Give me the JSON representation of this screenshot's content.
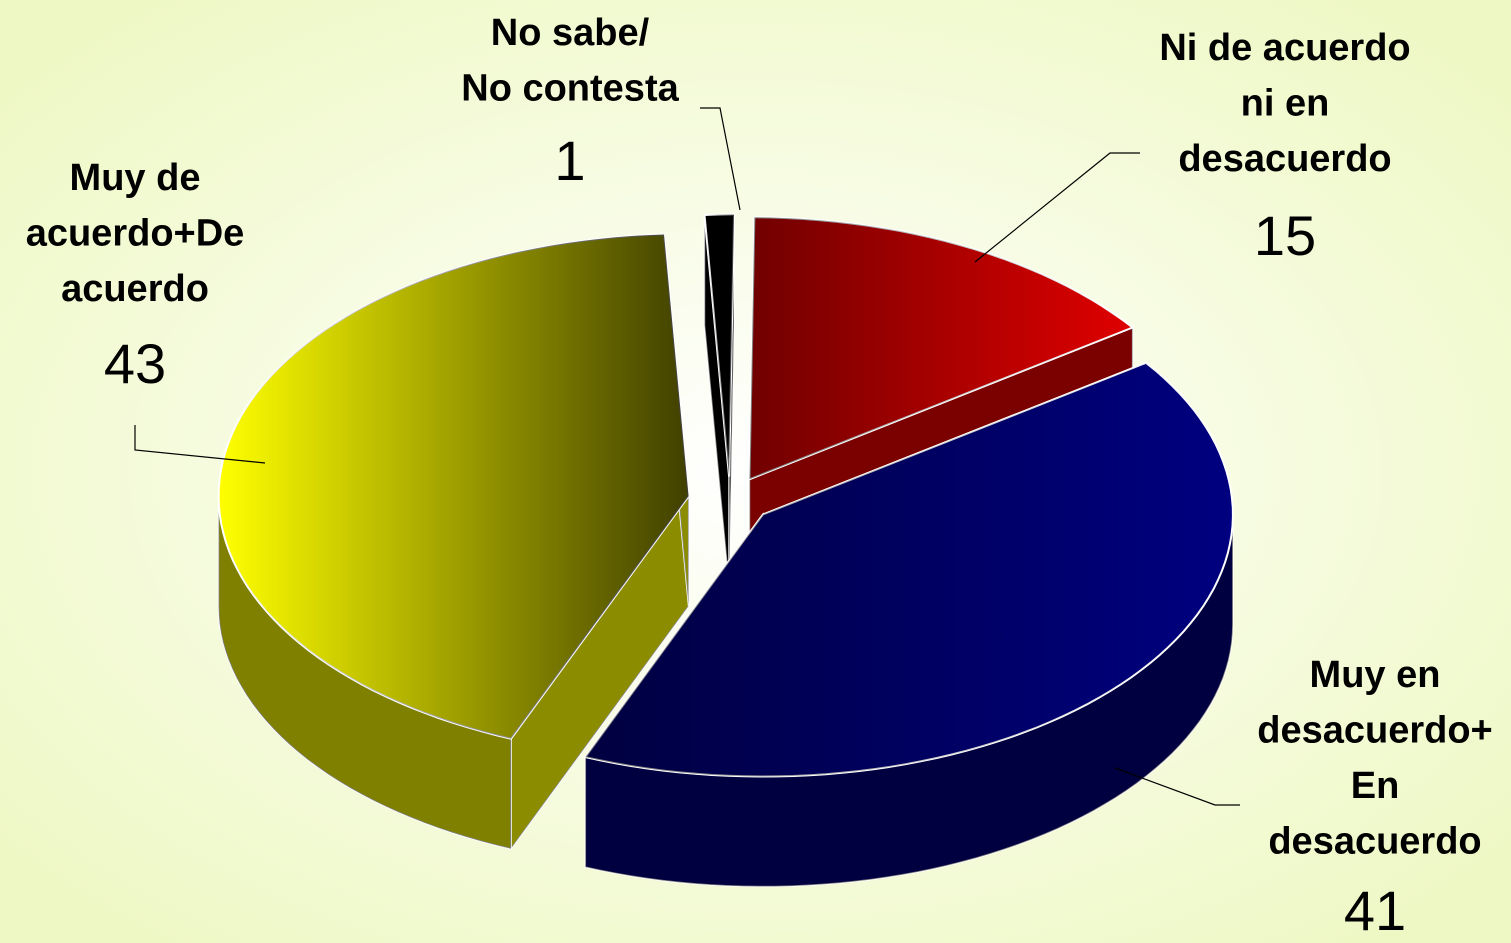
{
  "chart_data": {
    "type": "pie3d",
    "categories": [
      "No sabe/\nNo contesta",
      "Ni de acuerdo\nni en\ndesacuerdo",
      "Muy en\ndesacuerdo+\nEn\ndesacuerdo",
      "Muy de\nacuerdo+De\nacuerdo"
    ],
    "values": [
      1,
      15,
      41,
      43
    ],
    "colors": [
      "#000000",
      "#e00000",
      "#000080",
      "#ffff00"
    ]
  }
}
